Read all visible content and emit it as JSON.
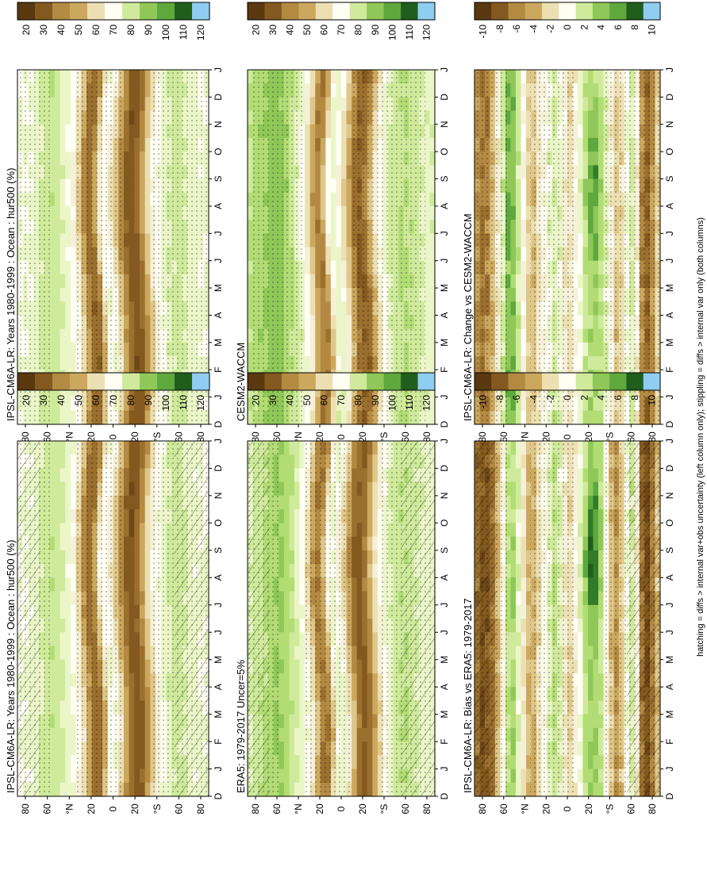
{
  "footnote": "hatching = diffs > internal var+obs uncertainty (left column only); stippling = diffs > internal var only (both columns)",
  "chart_data": [
    {
      "type": "heatmap",
      "title": "IPSL-CM6A-LR: Years 1980-1999 : Ocean : hur500 (%)",
      "months": [
        "J",
        "F",
        "M",
        "A",
        "M",
        "J",
        "J",
        "A",
        "S",
        "O",
        "N",
        "D",
        "J"
      ],
      "y_labels": [
        "80",
        "60",
        "°N",
        "20",
        "0",
        "20",
        "°S",
        "60",
        "80"
      ],
      "x_start_label": "D",
      "colorbar": {
        "ticks": [
          "120",
          "110",
          "100",
          "90",
          "80",
          "70",
          "60",
          "50",
          "40",
          "30",
          "20"
        ],
        "range": [
          20,
          130
        ]
      },
      "field": "clim",
      "seed": 11
    },
    {
      "type": "heatmap",
      "title": "IPSL-CM6A-LR: Years 1980-1999 : Ocean : hur500 (%)",
      "months": [
        "J",
        "F",
        "M",
        "A",
        "M",
        "J",
        "J",
        "A",
        "S",
        "O",
        "N",
        "D",
        "J"
      ],
      "y_labels": [
        "80",
        "60",
        "°N",
        "20",
        "0",
        "20",
        "°S",
        "60",
        "80"
      ],
      "x_start_label": "D",
      "colorbar": {
        "ticks": [
          "120",
          "110",
          "100",
          "90",
          "80",
          "70",
          "60",
          "50",
          "40",
          "30",
          "20"
        ],
        "range": [
          20,
          130
        ]
      },
      "field": "clim",
      "seed": 23
    },
    {
      "type": "heatmap",
      "title": "ERA5: 1979-2017 Uncer=5%",
      "months": [
        "J",
        "F",
        "M",
        "A",
        "M",
        "J",
        "J",
        "A",
        "S",
        "O",
        "N",
        "D",
        "J"
      ],
      "y_labels": [
        "80",
        "60",
        "°N",
        "20",
        "0",
        "20",
        "°S",
        "60",
        "80"
      ],
      "x_start_label": "D",
      "colorbar": {
        "ticks": [
          "120",
          "110",
          "100",
          "90",
          "80",
          "70",
          "60",
          "50",
          "40",
          "30",
          "20"
        ],
        "range": [
          20,
          130
        ]
      },
      "field": "era5",
      "seed": 37
    },
    {
      "type": "heatmap",
      "title": "CESM2-WACCM",
      "months": [
        "J",
        "F",
        "M",
        "A",
        "M",
        "J",
        "J",
        "A",
        "S",
        "O",
        "N",
        "D",
        "J"
      ],
      "y_labels": [
        "80",
        "60",
        "°N",
        "20",
        "0",
        "20",
        "°S",
        "60",
        "80"
      ],
      "x_start_label": "D",
      "colorbar": {
        "ticks": [
          "120",
          "110",
          "100",
          "90",
          "80",
          "70",
          "60",
          "50",
          "40",
          "30",
          "20"
        ],
        "range": [
          20,
          130
        ]
      },
      "field": "cesm",
      "seed": 41
    },
    {
      "type": "heatmap",
      "title": "IPSL-CM6A-LR: Bias vs ERA5: 1979-2017",
      "months": [
        "J",
        "F",
        "M",
        "A",
        "M",
        "J",
        "J",
        "A",
        "S",
        "O",
        "N",
        "D",
        "J"
      ],
      "y_labels": [
        "80",
        "60",
        "°N",
        "20",
        "0",
        "20",
        "°S",
        "60",
        "80"
      ],
      "x_start_label": "D",
      "colorbar": {
        "ticks": [
          "10",
          "8",
          "6",
          "4",
          "2",
          "0",
          "-2",
          "-4",
          "-6",
          "-8",
          "-10"
        ],
        "range": [
          -12,
          12
        ]
      },
      "field": "bias",
      "seed": 53
    },
    {
      "type": "heatmap",
      "title": "IPSL-CM6A-LR: Change vs CESM2-WACCM",
      "months": [
        "J",
        "F",
        "M",
        "A",
        "M",
        "J",
        "J",
        "A",
        "S",
        "O",
        "N",
        "D",
        "J"
      ],
      "y_labels": [
        "80",
        "60",
        "°N",
        "20",
        "0",
        "20",
        "°S",
        "60",
        "80"
      ],
      "x_start_label": "D",
      "colorbar": {
        "ticks": [
          "10",
          "8",
          "6",
          "4",
          "2",
          "0",
          "-2",
          "-4",
          "-6",
          "-8",
          "-10"
        ],
        "range": [
          -12,
          12
        ]
      },
      "field": "change",
      "seed": 67
    }
  ],
  "palette": [
    "#5a3810",
    "#6e4718",
    "#84591f",
    "#9b6f2e",
    "#b48a43",
    "#cca85f",
    "#dfc789",
    "#ece0b3",
    "#f6f0d9",
    "#fffff4",
    "#eaf6c8",
    "#cfea9b",
    "#b2dc74",
    "#8fc858",
    "#5ea83e",
    "#327b2a",
    "#1f5e1d",
    "#2e8fd6",
    "#8fcdf2"
  ]
}
